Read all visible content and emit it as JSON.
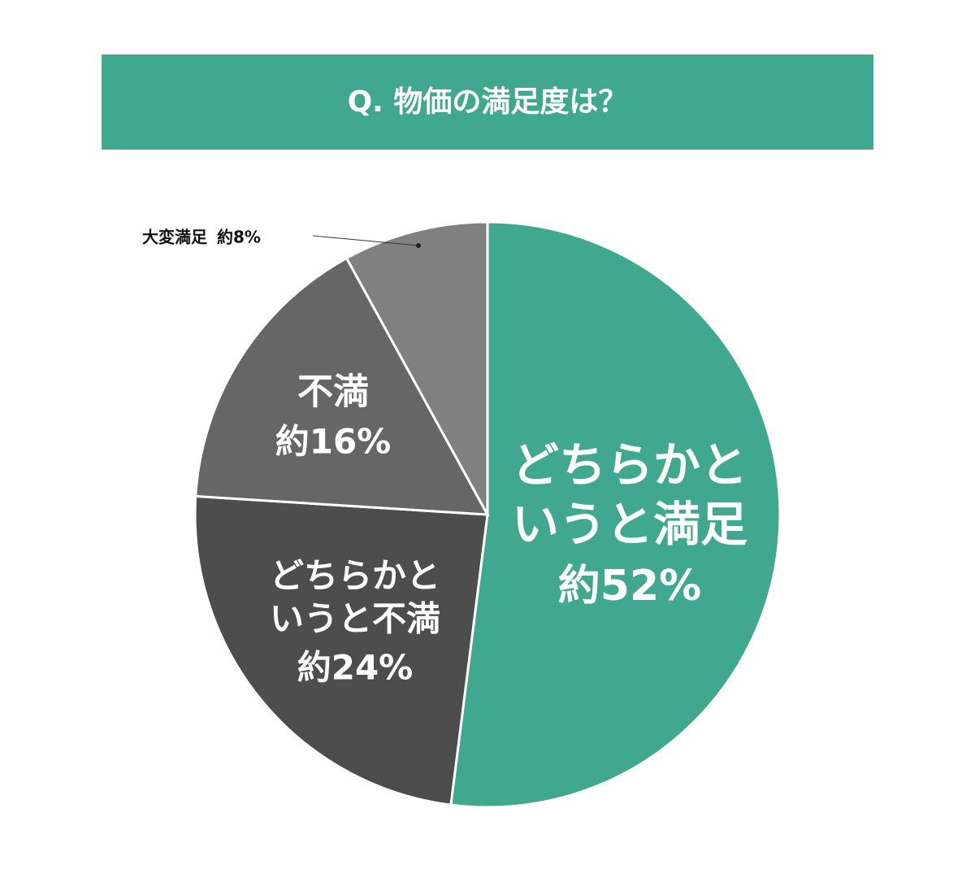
{
  "chart_data": {
    "type": "pie",
    "title": "Q. 物価の満足度は？",
    "categories": [
      "どちらかというと満足",
      "どちらかというと不満",
      "不満",
      "大変満足"
    ],
    "values": [
      52,
      24,
      16,
      8
    ],
    "value_labels": [
      "約52%",
      "約24%",
      "約16%",
      "約8%"
    ],
    "colors": [
      "#3fa88e",
      "#4d4d4d",
      "#666666",
      "#808080"
    ],
    "title_color": "#3fa88e"
  }
}
